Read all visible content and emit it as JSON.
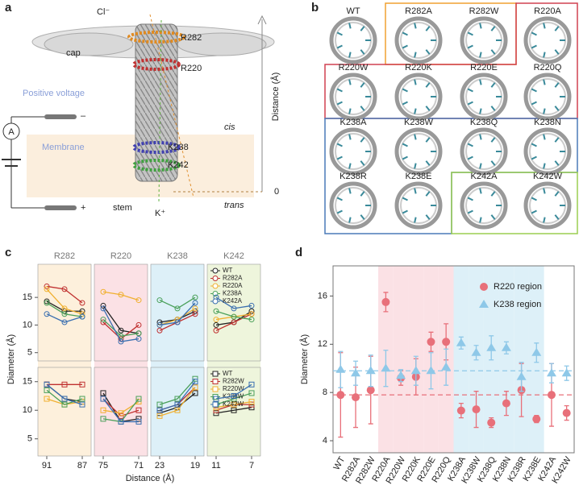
{
  "panel_a": {
    "label": "a",
    "cl": "Cl⁻",
    "r282": "R282",
    "r220": "R220",
    "cap": "cap",
    "voltage": "Positive voltage",
    "minus": "–",
    "ammeter": "A",
    "membrane": "Membrane",
    "cis": "cis",
    "k238": "K238",
    "k242": "K242",
    "axis": "Distance (Å)",
    "zero": 0,
    "trans": "trans",
    "stem": "stem",
    "k": "K⁺",
    "plus": "+"
  },
  "panel_b": {
    "label": "b",
    "mutants": [
      "WT",
      "R282A",
      "R282W",
      "R220A",
      "R220W",
      "R220K",
      "R220E",
      "R220Q",
      "K238A",
      "K238W",
      "K238Q",
      "K238N",
      "K238R",
      "K238E",
      "K242A",
      "K242W"
    ]
  },
  "chart_data": [
    {
      "type": "line",
      "panel_label": "c",
      "xlabel": "Distance (Å)",
      "ylabel": "Diameter (Å)",
      "regions": [
        {
          "name": "R282",
          "color": "#fdf0dc",
          "x": [
            91,
            89,
            87
          ],
          "xlim": [
            92,
            86
          ],
          "xticks": [
            91,
            87
          ]
        },
        {
          "name": "R220",
          "color": "#fbe1e5",
          "x": [
            75,
            73,
            71
          ],
          "xlim": [
            76,
            70
          ],
          "xticks": [
            75,
            71
          ]
        },
        {
          "name": "K238",
          "color": "#ddf0f8",
          "x": [
            23,
            21,
            19
          ],
          "xlim": [
            24,
            18
          ],
          "xticks": [
            23,
            19
          ]
        },
        {
          "name": "K242",
          "color": "#eef5dc",
          "x": [
            11,
            9,
            7
          ],
          "xlim": [
            12,
            6
          ],
          "xticks": [
            11,
            7
          ]
        }
      ],
      "rows": [
        {
          "marker": "circle",
          "ylim": [
            3.5,
            21
          ],
          "yticks": [
            5,
            10,
            15
          ],
          "series": [
            {
              "name": "WT",
              "color": "#222222",
              "values": [
                14.3,
                12.5,
                12.5,
                13.5,
                9,
                8.5,
                10.5,
                11,
                12.5,
                10,
                10.5,
                12.5
              ]
            },
            {
              "name": "R282A",
              "color": "#c0302f",
              "values": [
                17,
                16.5,
                14,
                10.5,
                7.5,
                10,
                9,
                10.5,
                12,
                9,
                10.5,
                12
              ]
            },
            {
              "name": "R220A",
              "color": "#f0b030",
              "values": [
                16.5,
                13,
                12,
                16,
                15.5,
                14.5,
                10,
                11,
                13,
                11,
                11.5,
                12
              ]
            },
            {
              "name": "K238A",
              "color": "#4aa05a",
              "values": [
                14,
                12,
                11.5,
                11,
                8,
                8.5,
                14.5,
                13,
                15,
                12.5,
                11.5,
                11
              ]
            },
            {
              "name": "K242A",
              "color": "#3a6fb0",
              "values": [
                12,
                10.5,
                11.5,
                13,
                7,
                7.5,
                10,
                10.5,
                14,
                15,
                13,
                13.5
              ]
            }
          ]
        },
        {
          "marker": "square",
          "ylim": [
            2,
            17.5
          ],
          "yticks": [
            5,
            10,
            15
          ],
          "series": [
            {
              "name": "WT",
              "color": "#222222",
              "values": [
                14.5,
                12,
                11.5,
                13,
                8,
                8.5,
                9.5,
                10.5,
                13,
                9.5,
                10,
                10.5
              ]
            },
            {
              "name": "R282W",
              "color": "#c0302f",
              "values": [
                14.5,
                14.5,
                14.5,
                12,
                9,
                10,
                10,
                11,
                14,
                10,
                11,
                11
              ]
            },
            {
              "name": "R220W",
              "color": "#f0b030",
              "values": [
                12,
                11,
                11.5,
                10,
                9.5,
                11.5,
                9,
                10,
                14,
                10.5,
                11,
                11.5
              ]
            },
            {
              "name": "K238W",
              "color": "#4aa05a",
              "values": [
                13.5,
                11,
                12,
                8.5,
                8,
                12,
                11,
                12,
                15.5,
                11,
                12,
                13
              ]
            },
            {
              "name": "K242W",
              "color": "#3a6fb0",
              "values": [
                14.5,
                12,
                11,
                12,
                8,
                8,
                10,
                11,
                15,
                12,
                12.5,
                14.5
              ]
            }
          ]
        }
      ]
    },
    {
      "type": "errorbar",
      "panel_label": "d",
      "ylabel": "Diameter (Å)",
      "categories": [
        "WT",
        "R282A",
        "R282W",
        "R220A",
        "R220W",
        "R220K",
        "R220E",
        "R220Q",
        "K238A",
        "K238W",
        "K238Q",
        "K238N",
        "K238R",
        "K238E",
        "K242A",
        "K242W"
      ],
      "shade": [
        null,
        null,
        null,
        "#fbe1e5",
        "#fbe1e5",
        "#fbe1e5",
        "#fbe1e5",
        "#fbe1e5",
        "#ddf0f8",
        "#ddf0f8",
        "#ddf0f8",
        "#ddf0f8",
        "#ddf0f8",
        "#ddf0f8",
        null,
        null
      ],
      "ylim": [
        3,
        18.5
      ],
      "yticks": [
        4,
        8,
        12,
        16
      ],
      "series": [
        {
          "name": "R220 region",
          "color": "#e8707a",
          "marker": "circle",
          "reference": 7.8,
          "values": [
            7.8,
            7.6,
            8.2,
            15.5,
            9.2,
            9.3,
            12.2,
            12.2,
            6.5,
            6.6,
            5.5,
            7.1,
            8.2,
            5.8,
            7.8,
            6.3
          ],
          "errors": [
            3.5,
            2.5,
            2.8,
            0.8,
            0.6,
            1.5,
            0.8,
            1.5,
            0.6,
            1.5,
            0.4,
            1,
            2.2,
            0.3,
            2.6,
            0.6
          ]
        },
        {
          "name": "K238 region",
          "color": "#8ec8e8",
          "marker": "triangle",
          "reference": 9.8,
          "values": [
            9.9,
            9.6,
            9.8,
            10,
            9.4,
            9.8,
            9.8,
            10.1,
            12.1,
            11.3,
            11.7,
            11.7,
            9.3,
            11.3,
            9.6,
            9.6
          ],
          "errors": [
            1.5,
            1,
            1.3,
            1.5,
            0.5,
            1.2,
            1.5,
            1.5,
            0.5,
            0.6,
            1,
            0.5,
            1.2,
            0.8,
            0.8,
            0.6
          ]
        }
      ]
    }
  ]
}
